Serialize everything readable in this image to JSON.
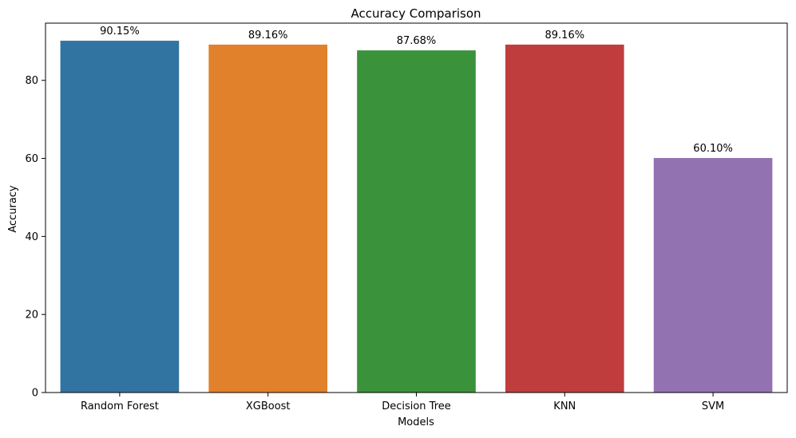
{
  "chart_data": {
    "type": "bar",
    "title": "Accuracy Comparison",
    "xlabel": "Models",
    "ylabel": "Accuracy",
    "categories": [
      "Random Forest",
      "XGBoost",
      "Decision Tree",
      "KNN",
      "SVM"
    ],
    "values": [
      90.15,
      89.16,
      87.68,
      89.16,
      60.1
    ],
    "data_labels": [
      "90.15%",
      "89.16%",
      "87.68%",
      "89.16%",
      "60.10%"
    ],
    "colors": [
      "#3274a1",
      "#e1812c",
      "#3a923a",
      "#c03d3e",
      "#9372b2"
    ],
    "yticks": [
      0,
      20,
      40,
      60,
      80
    ],
    "ylim": [
      0,
      94.66
    ],
    "grid": false,
    "legend": "none"
  }
}
